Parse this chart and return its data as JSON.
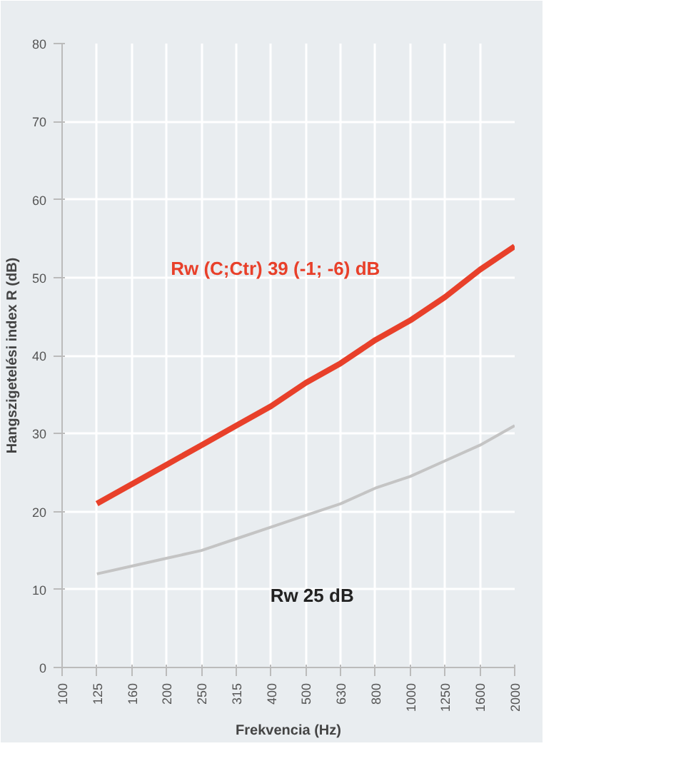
{
  "chart_data": {
    "type": "line",
    "xlabel": "Frekvencia (Hz)",
    "ylabel": "Hangszigetelési index R (dB)",
    "categories": [
      "100",
      "125",
      "160",
      "200",
      "250",
      "315",
      "400",
      "500",
      "630",
      "800",
      "1000",
      "1250",
      "1600",
      "2000"
    ],
    "series": [
      {
        "color": "#e8402a",
        "values": [
          null,
          21,
          23.5,
          26,
          28.5,
          31,
          33.5,
          36.5,
          39,
          42,
          44.5,
          47.5,
          51,
          54
        ]
      },
      {
        "color": "#c4c4c4",
        "values": [
          null,
          12,
          13,
          14,
          15,
          16.5,
          18,
          19.5,
          21,
          23,
          24.5,
          26.5,
          28.5,
          31
        ]
      }
    ],
    "ylim": [
      0,
      80
    ],
    "yticks": [
      0,
      10,
      20,
      30,
      40,
      50,
      60,
      70,
      80
    ],
    "grid": true,
    "annotations": [
      "Rw (C;Ctr) 39 (-1; -6) dB",
      "Rw 25 dB"
    ]
  }
}
